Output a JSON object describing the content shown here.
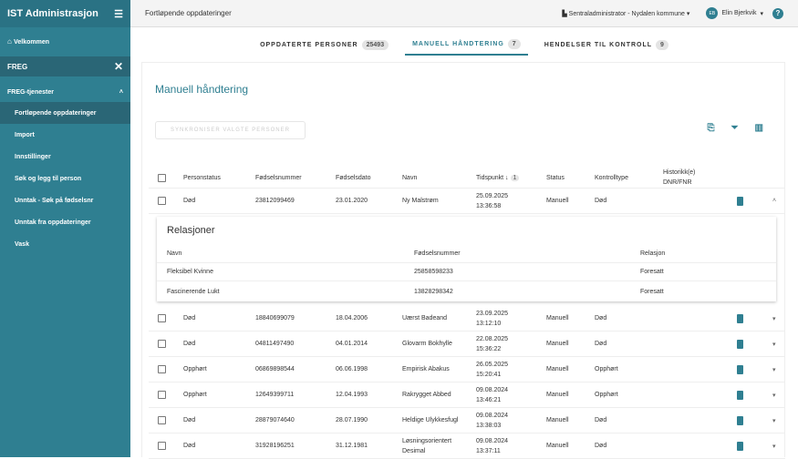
{
  "app": {
    "title": "IST Administrasjon"
  },
  "sidebar": {
    "welcome": "Velkommen",
    "search_value": "FREG",
    "group": "FREG-tjenester",
    "items": [
      {
        "label": "Fortløpende oppdateringer",
        "active": true
      },
      {
        "label": "Import"
      },
      {
        "label": "Innstillinger"
      },
      {
        "label": "Søk og legg til person"
      },
      {
        "label": "Unntak - Søk på fødselsnr"
      },
      {
        "label": "Unntak fra oppdateringer"
      },
      {
        "label": "Vask"
      }
    ]
  },
  "header": {
    "title": "Fortløpende oppdateringer",
    "role": "Sentraladministrator - Nydalen kommune",
    "user_initials": "EB",
    "user": "Elin Bjerkvik"
  },
  "tabs": [
    {
      "label": "OPPDATERTE PERSONER",
      "count": "25493"
    },
    {
      "label": "MANUELL HÅNDTERING",
      "count": "7",
      "active": true
    },
    {
      "label": "HENDELSER TIL KONTROLL",
      "count": "9"
    }
  ],
  "main": {
    "title": "Manuell håndtering",
    "sync_button": "SYNKRONISER VALGTE PERSONER",
    "sort_badge": "1",
    "columns": [
      "Personstatus",
      "Fødselsnummer",
      "Fødselsdato",
      "Navn",
      "Tidspunkt ↓",
      "Status",
      "Kontrolltype",
      "Historikk(e) DNR/FNR"
    ],
    "rows": [
      {
        "personstatus": "Død",
        "fnr": "23812099469",
        "fdato": "23.01.2020",
        "navn": "Ny Malstrøm",
        "tid_date": "25.09.2025",
        "tid_time": "13:36:58",
        "status": "Manuell",
        "kontroll": "Død"
      },
      {
        "personstatus": "Død",
        "fnr": "18840699079",
        "fdato": "18.04.2006",
        "navn": "Uærst Badeand",
        "tid_date": "23.09.2025",
        "tid_time": "13:12:10",
        "status": "Manuell",
        "kontroll": "Død"
      },
      {
        "personstatus": "Død",
        "fnr": "04811497490",
        "fdato": "04.01.2014",
        "navn": "Glovarm Bokhylle",
        "tid_date": "22.08.2025",
        "tid_time": "15:36:22",
        "status": "Manuell",
        "kontroll": "Død"
      },
      {
        "personstatus": "Opphørt",
        "fnr": "06869898544",
        "fdato": "06.06.1998",
        "navn": "Empirisk Abakus",
        "tid_date": "26.05.2025",
        "tid_time": "15:20:41",
        "status": "Manuell",
        "kontroll": "Opphørt"
      },
      {
        "personstatus": "Opphørt",
        "fnr": "12649399711",
        "fdato": "12.04.1993",
        "navn": "Rakrygget Abbed",
        "tid_date": "09.08.2024",
        "tid_time": "13:46:21",
        "status": "Manuell",
        "kontroll": "Opphørt"
      },
      {
        "personstatus": "Død",
        "fnr": "28879074640",
        "fdato": "28.07.1990",
        "navn": "Heldige Ulykkesfugl",
        "tid_date": "09.08.2024",
        "tid_time": "13:38:03",
        "status": "Manuell",
        "kontroll": "Død"
      },
      {
        "personstatus": "Død",
        "fnr": "31928196251",
        "fdato": "31.12.1981",
        "navn": "Løsningsorientert Desimal",
        "tid_date": "09.08.2024",
        "tid_time": "13:37:11",
        "status": "Manuell",
        "kontroll": "Død"
      }
    ],
    "relations": {
      "title": "Relasjoner",
      "columns": [
        "Navn",
        "Fødselsnummer",
        "Relasjon"
      ],
      "rows": [
        [
          "Fleksibel Kvinne",
          "25858598233",
          "Foresatt"
        ],
        [
          "Fascinerende Lukt",
          "13828298342",
          "Foresatt"
        ]
      ]
    }
  },
  "colors": {
    "accent": "#2f7f91"
  }
}
